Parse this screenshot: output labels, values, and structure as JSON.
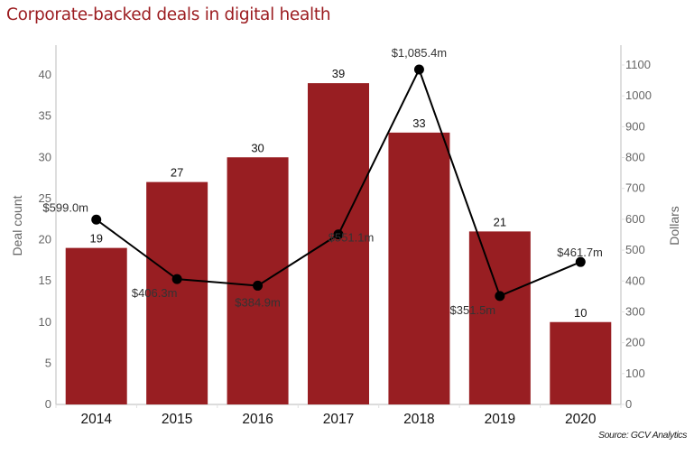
{
  "chart_data": {
    "type": "bar",
    "title": "Corporate-backed deals in digital health",
    "source": "Source: GCV Analytics",
    "categories": [
      "2014",
      "2015",
      "2016",
      "2017",
      "2018",
      "2019",
      "2020"
    ],
    "series": [
      {
        "name": "Deal count",
        "type": "bar",
        "axis": "left",
        "color": "#981e22",
        "values": [
          19,
          27,
          30,
          39,
          33,
          21,
          10
        ],
        "labels": [
          "19",
          "27",
          "30",
          "39",
          "33",
          "21",
          "10"
        ]
      },
      {
        "name": "Dollars",
        "type": "line",
        "axis": "right",
        "color": "#000000",
        "values": [
          599.0,
          406.3,
          384.9,
          551.1,
          1085.4,
          351.5,
          461.7
        ],
        "labels": [
          "$599.0m",
          "$406.3m",
          "$384.9m",
          "$551.1m",
          "$1,085.4m",
          "$351.5m",
          "$461.7m"
        ]
      }
    ],
    "y_left": {
      "label": "Deal count",
      "ylim": [
        0,
        43
      ],
      "ticks": [
        0,
        5,
        10,
        15,
        20,
        25,
        30,
        35,
        40
      ]
    },
    "y_right": {
      "label": "Dollars",
      "ylim": [
        0,
        1140
      ],
      "ticks": [
        0,
        100,
        200,
        300,
        400,
        500,
        600,
        700,
        800,
        900,
        1000,
        1100
      ]
    },
    "xlabel": "",
    "grid": false,
    "legend": "none"
  }
}
